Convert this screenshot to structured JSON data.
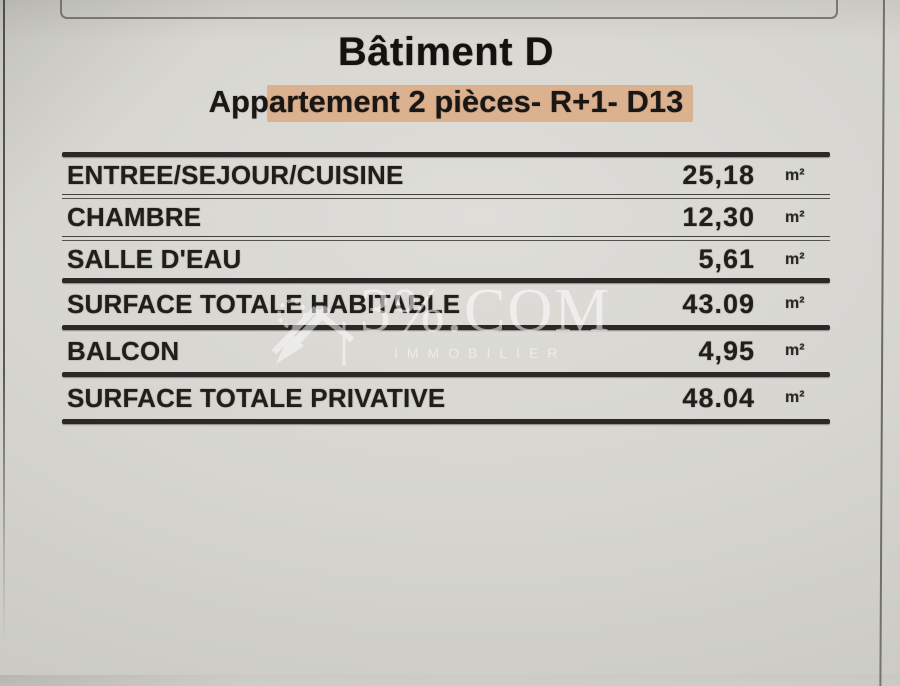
{
  "document": {
    "title": "Bâtiment D",
    "subtitle": "Appartement 2 pièces- R+1- D13",
    "subtitle_highlight_color": "#dcb190",
    "table": {
      "rows": [
        {
          "label": "ENTREE/SEJOUR/CUISINE",
          "value": "25,18",
          "unit": "m²",
          "total": false,
          "sep_after": "thin"
        },
        {
          "label": "CHAMBRE",
          "value": "12,30",
          "unit": "m²",
          "total": false,
          "sep_after": "thin"
        },
        {
          "label": "SALLE D'EAU",
          "value": "5,61",
          "unit": "m²",
          "total": false,
          "sep_after": "thick"
        },
        {
          "label": "SURFACE TOTALE HABITABLE",
          "value": "43.09",
          "unit": "m²",
          "total": true,
          "sep_after": "thick"
        },
        {
          "label": "BALCON",
          "value": "4,95",
          "unit": "m²",
          "total": false,
          "sep_after": "thick"
        },
        {
          "label": "SURFACE TOTALE PRIVATIVE",
          "value": "48.04",
          "unit": "m²",
          "total": true,
          "sep_after": "thick"
        }
      ]
    },
    "watermark": {
      "brand": "3%.COM",
      "tagline": "IMMOBILIER"
    }
  }
}
